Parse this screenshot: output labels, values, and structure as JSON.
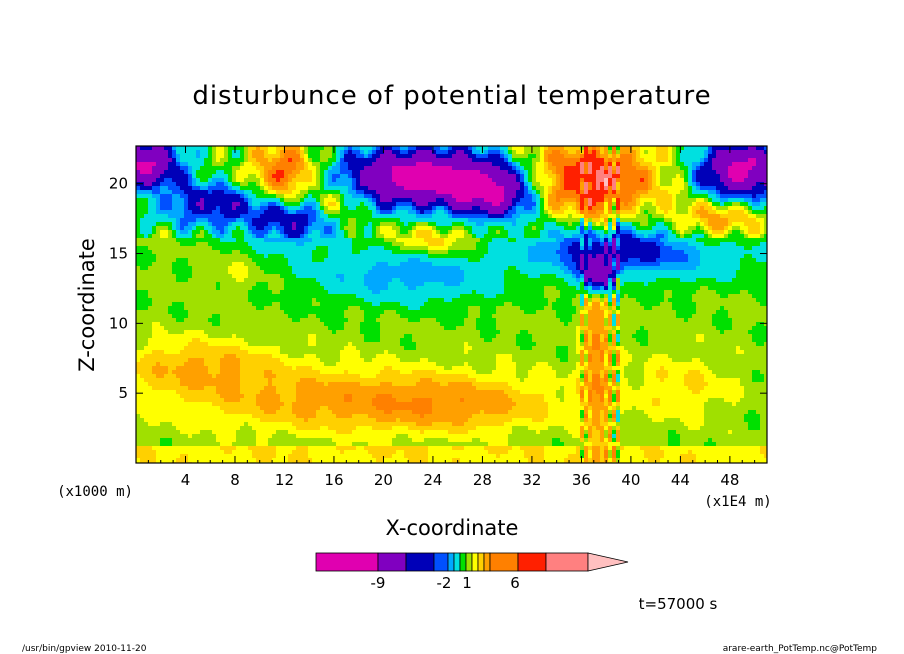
{
  "chart_data": {
    "type": "heatmap",
    "title": "disturbunce of potential temperature",
    "xlabel": "X-coordinate",
    "ylabel": "Z-coordinate",
    "x_unit": "(x1E4 m)",
    "y_unit": "(x1000 m)",
    "xlim": [
      0,
      51
    ],
    "ylim": [
      0,
      22.7
    ],
    "x_ticks": [
      4,
      8,
      12,
      16,
      20,
      24,
      28,
      32,
      36,
      40,
      44,
      48
    ],
    "y_ticks": [
      5,
      10,
      15,
      20
    ],
    "colorbar": {
      "colors": [
        "#e000b0",
        "#8000c0",
        "#0000b8",
        "#0050ff",
        "#00a8ff",
        "#00e0e0",
        "#00e000",
        "#a0e000",
        "#ffff00",
        "#ffd000",
        "#ffa000",
        "#ff8000",
        "#ff2000",
        "#ff8080",
        "#ffc0c0"
      ],
      "tick_labels": [
        "-9",
        "-2",
        "1",
        "6"
      ]
    },
    "regions": [
      {
        "label": "upper-left negative blob",
        "x": [
          0,
          3
        ],
        "z": [
          18,
          22.7
        ],
        "level": -6
      },
      {
        "label": "negative band",
        "x": [
          16,
          30
        ],
        "z": [
          18,
          22.7
        ],
        "level": -8
      },
      {
        "label": "positive blob",
        "x": [
          11,
          14
        ],
        "z": [
          18.5,
          22
        ],
        "level": 5
      },
      {
        "label": "positive blob",
        "x": [
          30,
          42
        ],
        "z": [
          18,
          22
        ],
        "level": 6
      },
      {
        "label": "negative blob",
        "x": [
          45,
          51
        ],
        "z": [
          19,
          22.7
        ],
        "level": -7
      },
      {
        "label": "lower orange band",
        "x": [
          9,
          30
        ],
        "z": [
          3,
          6.5
        ],
        "level": 3
      },
      {
        "label": "left orange band",
        "x": [
          0,
          8
        ],
        "z": [
          5.5,
          8
        ],
        "level": 3
      },
      {
        "label": "central column",
        "x": [
          36,
          39
        ],
        "z": [
          1,
          16
        ],
        "level": 5
      }
    ]
  },
  "annotations": {
    "time": "t=57000 s",
    "footer_left": "/usr/bin/gpview   2010-11-20",
    "footer_right": "arare-earth_PotTemp.nc@PotTemp"
  }
}
